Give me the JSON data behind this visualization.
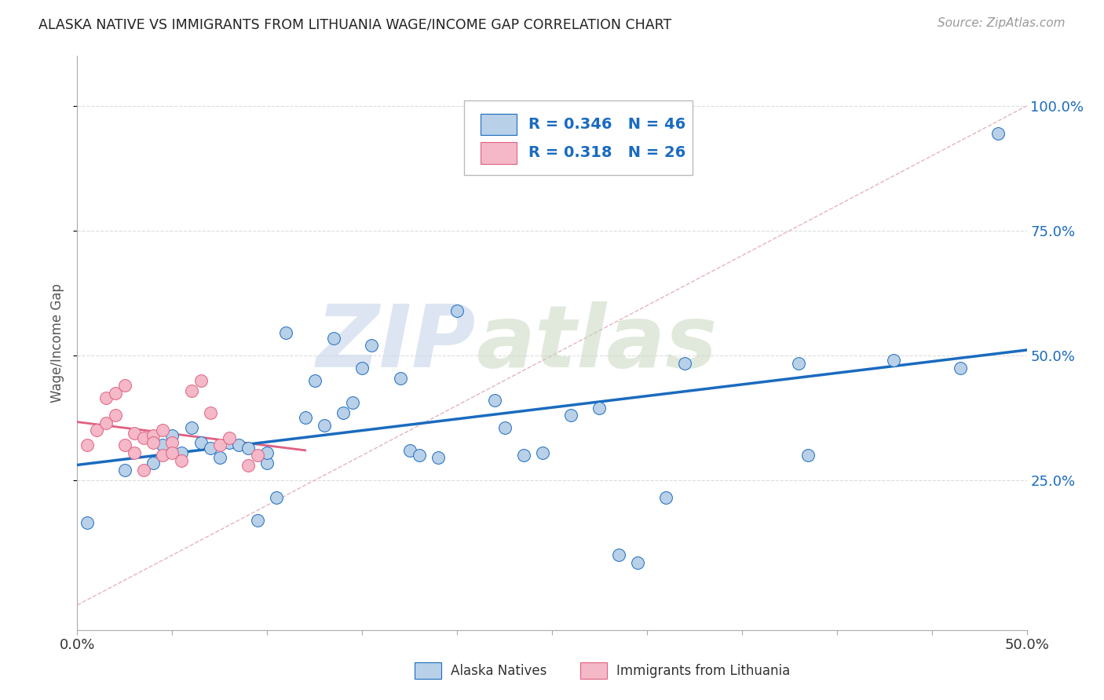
{
  "title": "ALASKA NATIVE VS IMMIGRANTS FROM LITHUANIA WAGE/INCOME GAP CORRELATION CHART",
  "source_text": "Source: ZipAtlas.com",
  "ylabel": "Wage/Income Gap",
  "xlim": [
    0.0,
    0.5
  ],
  "ylim": [
    -0.05,
    1.1
  ],
  "ytick_labels": [
    "25.0%",
    "50.0%",
    "75.0%",
    "100.0%"
  ],
  "ytick_positions": [
    0.25,
    0.5,
    0.75,
    1.0
  ],
  "R_blue": 0.346,
  "N_blue": 46,
  "R_pink": 0.318,
  "N_pink": 26,
  "blue_color": "#b8d0e8",
  "pink_color": "#f4b8c8",
  "line_blue_color": "#1a6bbf",
  "line_pink_color": "#e06080",
  "watermark_zip": "ZIP",
  "watermark_atlas": "atlas",
  "blue_x": [
    0.005,
    0.025,
    0.04,
    0.045,
    0.05,
    0.055,
    0.06,
    0.065,
    0.07,
    0.075,
    0.08,
    0.085,
    0.09,
    0.095,
    0.1,
    0.1,
    0.105,
    0.11,
    0.12,
    0.125,
    0.13,
    0.135,
    0.14,
    0.145,
    0.15,
    0.155,
    0.17,
    0.175,
    0.18,
    0.19,
    0.2,
    0.22,
    0.225,
    0.235,
    0.245,
    0.26,
    0.275,
    0.285,
    0.295,
    0.31,
    0.32,
    0.38,
    0.385,
    0.43,
    0.465,
    0.485
  ],
  "blue_y": [
    0.165,
    0.27,
    0.285,
    0.32,
    0.34,
    0.305,
    0.355,
    0.325,
    0.315,
    0.295,
    0.325,
    0.32,
    0.315,
    0.17,
    0.285,
    0.305,
    0.215,
    0.545,
    0.375,
    0.45,
    0.36,
    0.535,
    0.385,
    0.405,
    0.475,
    0.52,
    0.455,
    0.31,
    0.3,
    0.295,
    0.59,
    0.41,
    0.355,
    0.3,
    0.305,
    0.38,
    0.395,
    0.1,
    0.085,
    0.215,
    0.485,
    0.485,
    0.3,
    0.49,
    0.475,
    0.945
  ],
  "pink_x": [
    0.005,
    0.01,
    0.015,
    0.015,
    0.02,
    0.02,
    0.025,
    0.025,
    0.03,
    0.03,
    0.035,
    0.035,
    0.04,
    0.04,
    0.045,
    0.045,
    0.05,
    0.05,
    0.055,
    0.06,
    0.065,
    0.07,
    0.075,
    0.08,
    0.09,
    0.095
  ],
  "pink_y": [
    0.32,
    0.35,
    0.365,
    0.415,
    0.38,
    0.425,
    0.44,
    0.32,
    0.345,
    0.305,
    0.335,
    0.27,
    0.34,
    0.325,
    0.35,
    0.3,
    0.325,
    0.305,
    0.29,
    0.43,
    0.45,
    0.385,
    0.32,
    0.335,
    0.28,
    0.3
  ],
  "ref_line": [
    [
      0.0,
      0.0
    ],
    [
      0.5,
      1.0
    ]
  ],
  "blue_trend_start_x": 0.0,
  "blue_trend_end_x": 0.5,
  "pink_trend_start_x": 0.0,
  "pink_trend_end_x": 0.12
}
